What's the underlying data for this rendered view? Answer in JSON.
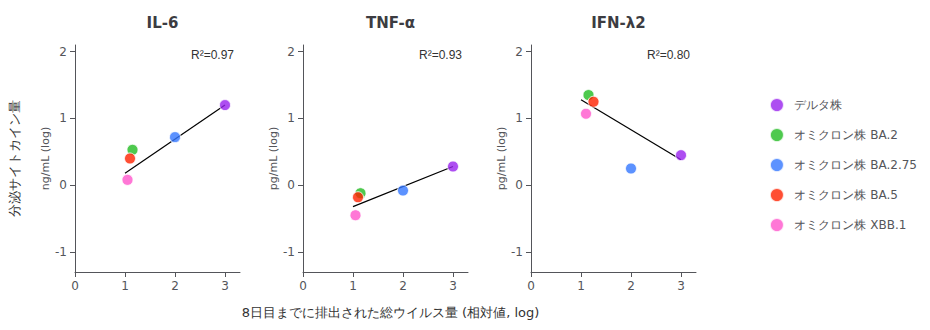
{
  "chart_data": {
    "type": "scatter",
    "xlabel": "8日目までに排出された総ウイルス量 (相対値, log)",
    "ylabel": "分泌サイトカイン量",
    "xlim": [
      0,
      3.3
    ],
    "ylim": [
      -1.3,
      2.1
    ],
    "xticks": [
      0,
      1,
      2,
      3
    ],
    "yticks": [
      -1,
      0,
      1,
      2
    ],
    "grid": false,
    "legend": "right",
    "panels": [
      {
        "title": "IL-6",
        "ylabel": "ng/mL (log)",
        "annotation": "R²=0.97",
        "series": [
          {
            "name": "デルタ株",
            "color": "#9922ee",
            "x": [
              3.0
            ],
            "y": [
              1.2
            ]
          },
          {
            "name": "オミクロン株 BA.2",
            "color": "#22bb22",
            "x": [
              1.15
            ],
            "y": [
              0.53
            ]
          },
          {
            "name": "オミクロン株 BA.2.75",
            "color": "#3377ff",
            "x": [
              2.0
            ],
            "y": [
              0.72
            ]
          },
          {
            "name": "オミクロン株 BA.5",
            "color": "#ff2200",
            "x": [
              1.1
            ],
            "y": [
              0.4
            ]
          },
          {
            "name": "オミクロン株 XBB.1",
            "color": "#ff55cc",
            "x": [
              1.05
            ],
            "y": [
              0.08
            ]
          }
        ],
        "fit": {
          "type": "line",
          "color": "#000000",
          "x": [
            1.0,
            3.0
          ],
          "y": [
            0.18,
            1.2
          ]
        }
      },
      {
        "title": "TNF-α",
        "ylabel": "pg/mL (log)",
        "annotation": "R²=0.93",
        "series": [
          {
            "name": "デルタ株",
            "color": "#9922ee",
            "x": [
              3.0
            ],
            "y": [
              0.28
            ]
          },
          {
            "name": "オミクロン株 BA.2",
            "color": "#22bb22",
            "x": [
              1.15
            ],
            "y": [
              -0.12
            ]
          },
          {
            "name": "オミクロン株 BA.2.75",
            "color": "#3377ff",
            "x": [
              2.0
            ],
            "y": [
              -0.08
            ]
          },
          {
            "name": "オミクロン株 BA.5",
            "color": "#ff2200",
            "x": [
              1.1
            ],
            "y": [
              -0.18
            ]
          },
          {
            "name": "オミクロン株 XBB.1",
            "color": "#ff55cc",
            "x": [
              1.05
            ],
            "y": [
              -0.45
            ]
          }
        ],
        "fit": {
          "type": "line",
          "color": "#000000",
          "x": [
            1.0,
            3.0
          ],
          "y": [
            -0.32,
            0.28
          ]
        }
      },
      {
        "title": "IFN-λ2",
        "ylabel": "pg/mL (log)",
        "annotation": "R²=0.80",
        "series": [
          {
            "name": "デルタ株",
            "color": "#9922ee",
            "x": [
              3.0
            ],
            "y": [
              0.45
            ]
          },
          {
            "name": "オミクロン株 BA.2",
            "color": "#22bb22",
            "x": [
              1.15
            ],
            "y": [
              1.35
            ]
          },
          {
            "name": "オミクロン株 BA.2.75",
            "color": "#3377ff",
            "x": [
              2.0
            ],
            "y": [
              0.25
            ]
          },
          {
            "name": "オミクロン株 BA.5",
            "color": "#ff2200",
            "x": [
              1.25
            ],
            "y": [
              1.25
            ]
          },
          {
            "name": "オミクロン株 XBB.1",
            "color": "#ff55cc",
            "x": [
              1.1
            ],
            "y": [
              1.07
            ]
          }
        ],
        "fit": {
          "type": "line",
          "color": "#000000",
          "x": [
            1.0,
            3.0
          ],
          "y": [
            1.28,
            0.38
          ]
        }
      }
    ]
  }
}
